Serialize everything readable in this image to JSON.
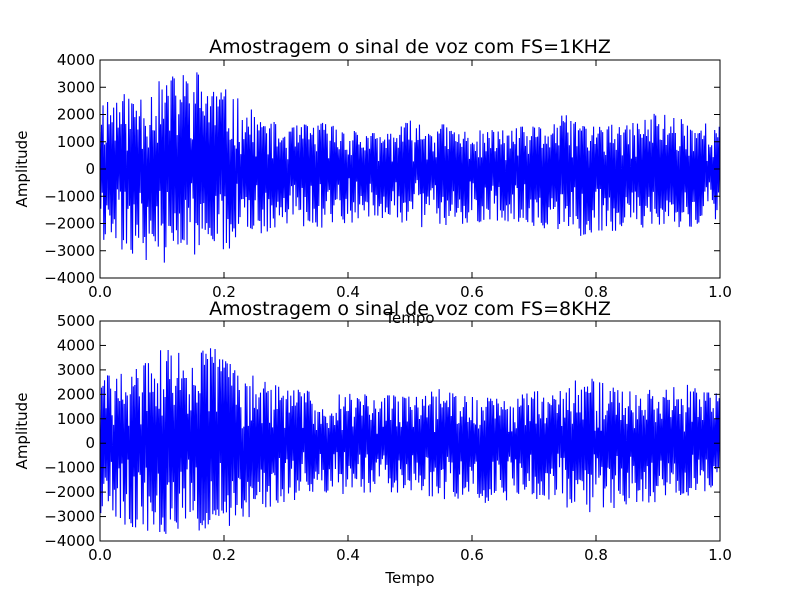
{
  "chart_data": [
    {
      "type": "line",
      "title": "Amostragem o sinal de voz com FS=1KHZ",
      "xlabel": "Tempo",
      "ylabel": "Amplitude",
      "xlim": [
        0.0,
        1.0
      ],
      "ylim": [
        -4000,
        4000
      ],
      "xticks": [
        "0.0",
        "0.2",
        "0.4",
        "0.6",
        "0.8",
        "1.0"
      ],
      "yticks": [
        "4000",
        "3000",
        "2000",
        "1000",
        "0",
        "−1000",
        "−2000",
        "−3000",
        "−4000"
      ],
      "grid": false,
      "line_color": "#0000ff",
      "series": [
        {
          "x": [
            0.0,
            0.05,
            0.1,
            0.15,
            0.2,
            0.25,
            0.3,
            0.35,
            0.4,
            0.45,
            0.5,
            0.55,
            0.6,
            0.65,
            0.7,
            0.75,
            0.8,
            0.85,
            0.9,
            0.95,
            1.0
          ],
          "y_pos": [
            2800,
            2800,
            3300,
            3800,
            3000,
            2100,
            1500,
            1800,
            1600,
            1300,
            1800,
            1700,
            1400,
            1500,
            1600,
            2000,
            1700,
            1600,
            2200,
            1900,
            1600
          ],
          "y_neg": [
            -2800,
            -3200,
            -3500,
            -3300,
            -3000,
            -2600,
            -2000,
            -2200,
            -2000,
            -1800,
            -2100,
            -2200,
            -2000,
            -1900,
            -2100,
            -2500,
            -2500,
            -2300,
            -2200,
            -2300,
            -1800
          ]
        }
      ]
    },
    {
      "type": "line",
      "title": "Amostragem o sinal de voz com FS=8KHZ",
      "xlabel": "Tempo",
      "ylabel": "Amplitude",
      "xlim": [
        0.0,
        1.0
      ],
      "ylim": [
        -4000,
        5000
      ],
      "xticks": [
        "0.0",
        "0.2",
        "0.4",
        "0.6",
        "0.8",
        "1.0"
      ],
      "yticks": [
        "5000",
        "4000",
        "3000",
        "2000",
        "1000",
        "0",
        "−1000",
        "−2000",
        "−3000",
        "−4000"
      ],
      "grid": false,
      "line_color": "#0000ff",
      "series": [
        {
          "x": [
            0.0,
            0.05,
            0.1,
            0.15,
            0.2,
            0.25,
            0.3,
            0.35,
            0.4,
            0.45,
            0.5,
            0.55,
            0.6,
            0.65,
            0.7,
            0.75,
            0.8,
            0.85,
            0.9,
            0.95,
            1.0
          ],
          "y_pos": [
            2800,
            3000,
            3900,
            3800,
            4200,
            2700,
            2300,
            2200,
            2100,
            2000,
            2000,
            2300,
            2000,
            1900,
            2200,
            2600,
            2700,
            2100,
            2600,
            2400,
            2000
          ],
          "y_neg": [
            -3000,
            -3500,
            -3800,
            -3700,
            -3700,
            -2900,
            -2400,
            -2200,
            -2100,
            -2000,
            -2100,
            -2300,
            -2400,
            -2500,
            -2300,
            -2700,
            -3000,
            -2500,
            -2600,
            -2200,
            -2000
          ]
        }
      ]
    }
  ]
}
